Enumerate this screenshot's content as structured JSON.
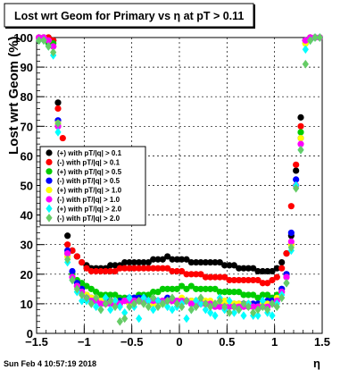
{
  "title": "Lost wrt Geom for Primary vs   η at pT > 0.11",
  "ylabel": "Lost wrt Geom (%)",
  "xlabel": "η",
  "timestamp": "Sun Feb  4 10:57:19 2018",
  "chart_data": {
    "type": "scatter",
    "title": "Lost wrt Geom for Primary vs   η at pT > 0.11",
    "xlabel": "η",
    "ylabel": "Lost wrt Geom (%)",
    "xlim": [
      -1.5,
      1.5
    ],
    "ylim": [
      0,
      100
    ],
    "x_ticks": [
      -1.5,
      -1,
      -0.5,
      0,
      0.5,
      1,
      1.5
    ],
    "x_tick_labels": [
      "−1.5",
      "−1",
      "−0.5",
      "0",
      "0.5",
      "1",
      "1.5"
    ],
    "y_ticks": [
      0,
      10,
      20,
      30,
      40,
      50,
      60,
      70,
      80,
      90,
      100
    ],
    "y_tick_labels": [
      "0",
      "10",
      "20",
      "30",
      "40",
      "50",
      "60",
      "70",
      "80",
      "90",
      "100"
    ],
    "grid": true,
    "legend_position": "left",
    "series": [
      {
        "name": "(+) with pT/|q| > 0.1",
        "color": "#000000",
        "marker": "circle",
        "x": [
          -1.475,
          -1.425,
          -1.375,
          -1.325,
          -1.275,
          -1.225,
          -1.175,
          -1.125,
          -1.075,
          -1.025,
          -0.975,
          -0.925,
          -0.875,
          -0.825,
          -0.775,
          -0.725,
          -0.675,
          -0.625,
          -0.575,
          -0.525,
          -0.475,
          -0.425,
          -0.375,
          -0.325,
          -0.275,
          -0.225,
          -0.175,
          -0.125,
          -0.075,
          -0.025,
          0.025,
          0.075,
          0.125,
          0.175,
          0.225,
          0.275,
          0.325,
          0.375,
          0.425,
          0.475,
          0.525,
          0.575,
          0.625,
          0.675,
          0.725,
          0.775,
          0.825,
          0.875,
          0.925,
          0.975,
          1.025,
          1.075,
          1.125,
          1.175,
          1.225,
          1.275,
          1.325,
          1.375,
          1.425,
          1.475
        ],
        "y": [
          100,
          100,
          100,
          99,
          78,
          60,
          33,
          28,
          26,
          24,
          23,
          22,
          22,
          22,
          22,
          23,
          23,
          23,
          24,
          24,
          24,
          24,
          24,
          24,
          25,
          25,
          25,
          26,
          25,
          25,
          25,
          25,
          24,
          24,
          24,
          24,
          24,
          24,
          24,
          23,
          23,
          23,
          22,
          22,
          22,
          22,
          21,
          21,
          21,
          21,
          22,
          24,
          27,
          33,
          55,
          73,
          99,
          100,
          100,
          100
        ]
      },
      {
        "name": "(-) with pT/|q| > 0.1",
        "color": "#ff0000",
        "marker": "circle",
        "x": [
          -1.475,
          -1.425,
          -1.375,
          -1.325,
          -1.275,
          -1.225,
          -1.175,
          -1.125,
          -1.075,
          -1.025,
          -0.975,
          -0.925,
          -0.875,
          -0.825,
          -0.775,
          -0.725,
          -0.675,
          -0.625,
          -0.575,
          -0.525,
          -0.475,
          -0.425,
          -0.375,
          -0.325,
          -0.275,
          -0.225,
          -0.175,
          -0.125,
          -0.075,
          -0.025,
          0.025,
          0.075,
          0.125,
          0.175,
          0.225,
          0.275,
          0.325,
          0.375,
          0.425,
          0.475,
          0.525,
          0.575,
          0.625,
          0.675,
          0.725,
          0.775,
          0.825,
          0.875,
          0.925,
          0.975,
          1.025,
          1.075,
          1.125,
          1.175,
          1.225,
          1.275,
          1.325,
          1.375,
          1.425,
          1.475
        ],
        "y": [
          100,
          100,
          100,
          99,
          76,
          66,
          30,
          28,
          26,
          24,
          22,
          21,
          21,
          21,
          21,
          21,
          21,
          22,
          22,
          22,
          22,
          22,
          22,
          22,
          22,
          22,
          22,
          22,
          21,
          21,
          21,
          20,
          20,
          20,
          20,
          19,
          19,
          19,
          19,
          19,
          18,
          18,
          18,
          18,
          18,
          18,
          18,
          17,
          17,
          18,
          19,
          22,
          27,
          43,
          57,
          70,
          99,
          100,
          100,
          100
        ]
      },
      {
        "name": "(+) with pT/|q| > 0.5",
        "color": "#00cc00",
        "marker": "circle",
        "x": [
          -1.475,
          -1.425,
          -1.375,
          -1.325,
          -1.275,
          -1.225,
          -1.175,
          -1.125,
          -1.075,
          -1.025,
          -0.975,
          -0.925,
          -0.875,
          -0.825,
          -0.775,
          -0.725,
          -0.675,
          -0.625,
          -0.575,
          -0.525,
          -0.475,
          -0.425,
          -0.375,
          -0.325,
          -0.275,
          -0.225,
          -0.175,
          -0.125,
          -0.075,
          -0.025,
          0.025,
          0.075,
          0.125,
          0.175,
          0.225,
          0.275,
          0.325,
          0.375,
          0.425,
          0.475,
          0.525,
          0.575,
          0.625,
          0.675,
          0.725,
          0.775,
          0.825,
          0.875,
          0.925,
          0.975,
          1.025,
          1.075,
          1.125,
          1.175,
          1.225,
          1.275,
          1.325,
          1.375,
          1.425,
          1.475
        ],
        "y": [
          100,
          100,
          98,
          98,
          70,
          57,
          27,
          20,
          18,
          17,
          16,
          15,
          14,
          13,
          13,
          13,
          13,
          12,
          12,
          12,
          12,
          13,
          13,
          13,
          14,
          14,
          15,
          15,
          15,
          15,
          16,
          15,
          16,
          15,
          15,
          15,
          15,
          15,
          14,
          14,
          14,
          14,
          14,
          13,
          13,
          13,
          12,
          13,
          13,
          12,
          13,
          15,
          20,
          30,
          50,
          68,
          98,
          100,
          100,
          100
        ]
      },
      {
        "name": "(-) with pT/|q| > 0.5",
        "color": "#0000ff",
        "marker": "circle",
        "x": [
          -1.475,
          -1.425,
          -1.375,
          -1.325,
          -1.275,
          -1.225,
          -1.175,
          -1.125,
          -1.075,
          -1.025,
          -0.975,
          -0.925,
          -0.875,
          -0.825,
          -0.775,
          -0.725,
          -0.675,
          -0.625,
          -0.575,
          -0.525,
          -0.475,
          -0.425,
          -0.375,
          -0.325,
          -0.275,
          -0.225,
          -0.175,
          -0.125,
          -0.075,
          -0.025,
          0.025,
          0.075,
          0.125,
          0.175,
          0.225,
          0.275,
          0.325,
          0.375,
          0.425,
          0.475,
          0.525,
          0.575,
          0.625,
          0.675,
          0.725,
          0.775,
          0.825,
          0.875,
          0.925,
          0.975,
          1.025,
          1.075,
          1.125,
          1.175,
          1.225,
          1.275,
          1.325,
          1.375,
          1.425,
          1.475
        ],
        "y": [
          100,
          100,
          99,
          97,
          72,
          60,
          28,
          21,
          17,
          15,
          13,
          12,
          12,
          11,
          11,
          11,
          11,
          11,
          11,
          12,
          12,
          12,
          12,
          11,
          11,
          11,
          11,
          12,
          11,
          11,
          11,
          11,
          11,
          11,
          11,
          10,
          10,
          10,
          10,
          10,
          10,
          10,
          10,
          10,
          10,
          10,
          10,
          10,
          11,
          11,
          12,
          15,
          20,
          34,
          52,
          66,
          99,
          100,
          100,
          100
        ]
      },
      {
        "name": "(+) with pT/|q| > 1.0",
        "color": "#ffff00",
        "marker": "circle",
        "x": [
          -1.475,
          -1.425,
          -1.375,
          -1.325,
          -1.275,
          -1.225,
          -1.175,
          -1.125,
          -1.075,
          -1.025,
          -0.975,
          -0.925,
          -0.875,
          -0.825,
          -0.775,
          -0.725,
          -0.675,
          -0.625,
          -0.575,
          -0.525,
          -0.475,
          -0.425,
          -0.375,
          -0.325,
          -0.275,
          -0.225,
          -0.175,
          -0.125,
          -0.075,
          -0.025,
          0.025,
          0.075,
          0.125,
          0.175,
          0.225,
          0.275,
          0.325,
          0.375,
          0.425,
          0.475,
          0.525,
          0.575,
          0.625,
          0.675,
          0.725,
          0.775,
          0.825,
          0.875,
          0.925,
          0.975,
          1.025,
          1.075,
          1.125,
          1.175,
          1.225,
          1.275,
          1.325,
          1.375,
          1.425,
          1.475
        ],
        "y": [
          100,
          100,
          99,
          97,
          71,
          58,
          26,
          19,
          16,
          14,
          13,
          12,
          12,
          11,
          10,
          10,
          11,
          10,
          11,
          10,
          11,
          11,
          11,
          11,
          10,
          11,
          10,
          11,
          11,
          11,
          12,
          11,
          11,
          11,
          10,
          11,
          11,
          10,
          10,
          11,
          10,
          10,
          10,
          9,
          10,
          9,
          9,
          10,
          10,
          10,
          12,
          14,
          19,
          30,
          50,
          66,
          98,
          100,
          100,
          100
        ]
      },
      {
        "name": "(-) with pT/|q| > 1.0",
        "color": "#ff00ff",
        "marker": "circle",
        "x": [
          -1.475,
          -1.425,
          -1.375,
          -1.325,
          -1.275,
          -1.225,
          -1.175,
          -1.125,
          -1.075,
          -1.025,
          -0.975,
          -0.925,
          -0.875,
          -0.825,
          -0.775,
          -0.725,
          -0.675,
          -0.625,
          -0.575,
          -0.525,
          -0.475,
          -0.425,
          -0.375,
          -0.325,
          -0.275,
          -0.225,
          -0.175,
          -0.125,
          -0.075,
          -0.025,
          0.025,
          0.075,
          0.125,
          0.175,
          0.225,
          0.275,
          0.325,
          0.375,
          0.425,
          0.475,
          0.525,
          0.575,
          0.625,
          0.675,
          0.725,
          0.775,
          0.825,
          0.875,
          0.925,
          0.975,
          1.025,
          1.075,
          1.125,
          1.175,
          1.225,
          1.275,
          1.325,
          1.375,
          1.425,
          1.475
        ],
        "y": [
          100,
          100,
          99,
          97,
          70,
          58,
          27,
          19,
          16,
          14,
          12,
          11,
          11,
          10,
          10,
          10,
          10,
          10,
          11,
          11,
          11,
          11,
          11,
          11,
          11,
          11,
          11,
          11,
          11,
          11,
          11,
          11,
          10,
          10,
          10,
          10,
          10,
          9,
          9,
          9,
          9,
          9,
          9,
          9,
          9,
          9,
          9,
          9,
          9,
          10,
          11,
          14,
          19,
          31,
          50,
          64,
          99,
          100,
          100,
          100
        ]
      },
      {
        "name": "(+) with pT/|q| > 2.0",
        "color": "#00ffff",
        "marker": "diamond",
        "x": [
          -1.475,
          -1.425,
          -1.375,
          -1.325,
          -1.275,
          -1.225,
          -1.175,
          -1.125,
          -1.075,
          -1.025,
          -0.975,
          -0.925,
          -0.875,
          -0.825,
          -0.775,
          -0.725,
          -0.675,
          -0.625,
          -0.575,
          -0.525,
          -0.475,
          -0.425,
          -0.375,
          -0.325,
          -0.275,
          -0.225,
          -0.175,
          -0.125,
          -0.075,
          -0.025,
          0.025,
          0.075,
          0.125,
          0.175,
          0.225,
          0.275,
          0.325,
          0.375,
          0.425,
          0.475,
          0.525,
          0.575,
          0.625,
          0.675,
          0.725,
          0.775,
          0.825,
          0.875,
          0.925,
          0.975,
          1.025,
          1.075,
          1.125,
          1.175,
          1.225,
          1.275,
          1.325,
          1.375,
          1.425,
          1.475
        ],
        "y": [
          99,
          99,
          97,
          94,
          68,
          55,
          24,
          18,
          14,
          11,
          11,
          10,
          9,
          8,
          12,
          8,
          11,
          9,
          7,
          12,
          9,
          5,
          12,
          11,
          8,
          11,
          10,
          9,
          8,
          9,
          10,
          5,
          8,
          11,
          10,
          8,
          7,
          6,
          12,
          8,
          11,
          7,
          8,
          6,
          10,
          6,
          6,
          11,
          7,
          6,
          10,
          13,
          17,
          28,
          50,
          62,
          96,
          99,
          100,
          100
        ]
      },
      {
        "name": "(-) with pT/|q| > 2.0",
        "color": "#66cc66",
        "marker": "diamond",
        "x": [
          -1.475,
          -1.425,
          -1.375,
          -1.325,
          -1.275,
          -1.225,
          -1.175,
          -1.125,
          -1.075,
          -1.025,
          -0.975,
          -0.925,
          -0.875,
          -0.825,
          -0.775,
          -0.725,
          -0.675,
          -0.625,
          -0.575,
          -0.525,
          -0.475,
          -0.425,
          -0.375,
          -0.325,
          -0.275,
          -0.225,
          -0.175,
          -0.125,
          -0.075,
          -0.025,
          0.025,
          0.075,
          0.125,
          0.175,
          0.225,
          0.275,
          0.325,
          0.375,
          0.425,
          0.475,
          0.525,
          0.575,
          0.625,
          0.675,
          0.725,
          0.775,
          0.825,
          0.875,
          0.925,
          0.975,
          1.025,
          1.075,
          1.125,
          1.175,
          1.225,
          1.275,
          1.325,
          1.375,
          1.425,
          1.475
        ],
        "y": [
          99,
          99,
          97,
          95,
          71,
          60,
          25,
          18,
          15,
          13,
          12,
          10,
          12,
          8,
          10,
          11,
          9,
          4,
          5,
          9,
          10,
          11,
          10,
          9,
          12,
          9,
          10,
          11,
          12,
          10,
          9,
          11,
          8,
          9,
          12,
          10,
          9,
          10,
          11,
          9,
          7,
          9,
          8,
          10,
          9,
          7,
          8,
          9,
          8,
          10,
          9,
          12,
          17,
          29,
          49,
          62,
          91,
          99,
          100,
          100
        ]
      }
    ]
  }
}
